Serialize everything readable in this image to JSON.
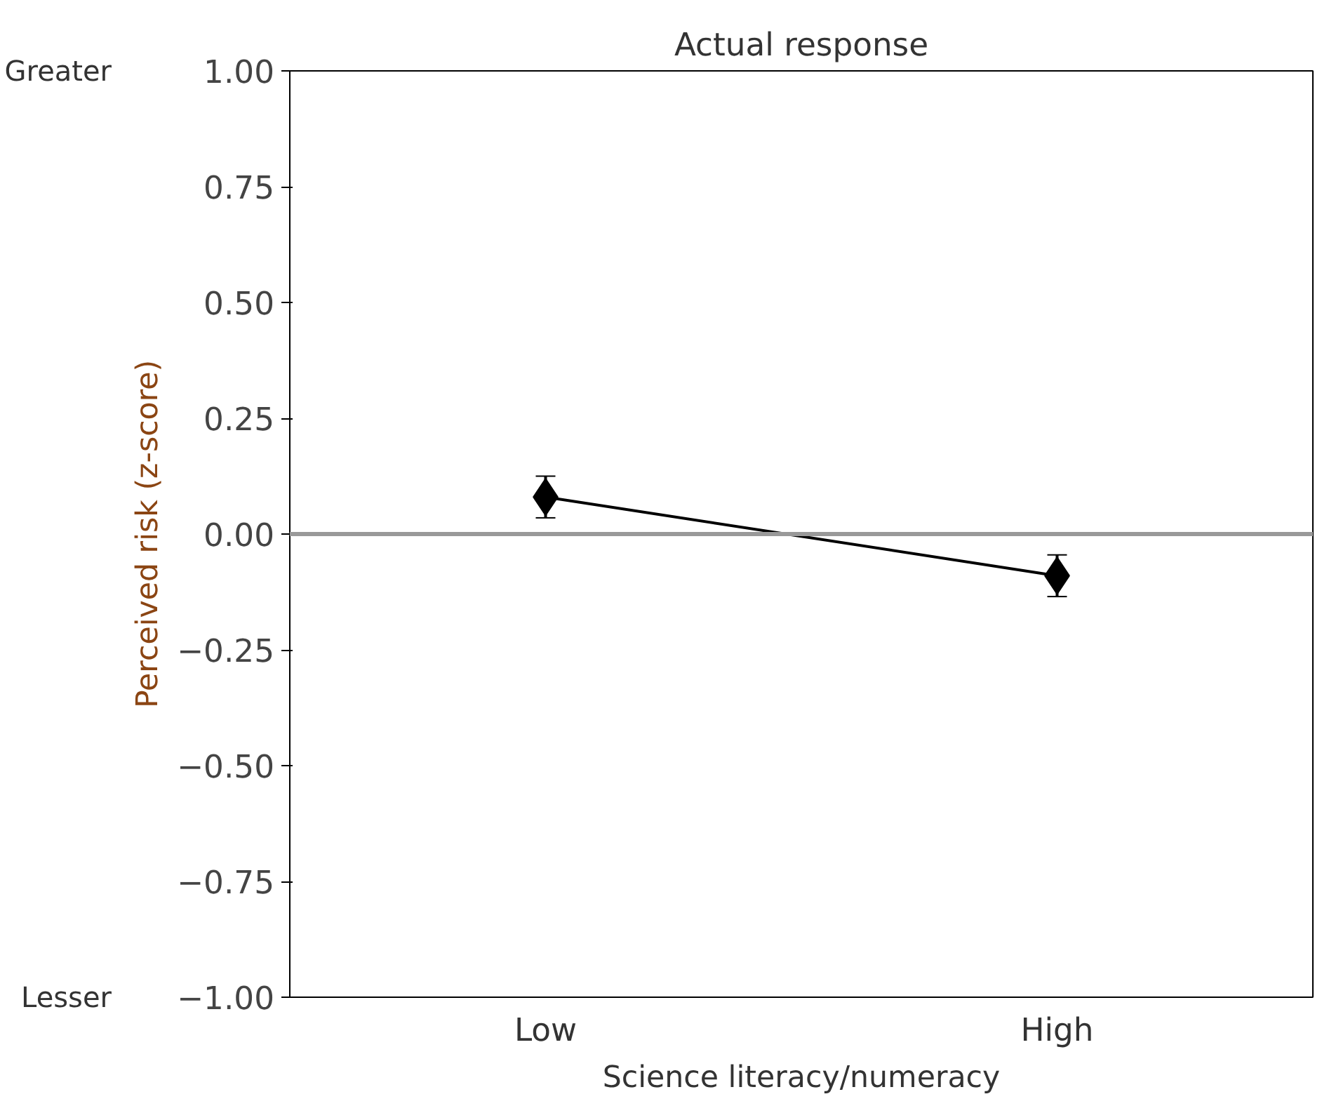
{
  "chart_data": {
    "type": "line",
    "title": "Actual response",
    "xlabel": "Science literacy/numeracy",
    "ylabel": "Perceived risk (z-score)",
    "categories": [
      "Low",
      "High"
    ],
    "series": [
      {
        "color": "#000000",
        "values": [
          0.08,
          -0.09
        ],
        "errors": [
          0.045,
          0.045
        ]
      }
    ],
    "marker": "diamond",
    "line_style": "solid",
    "ylim": [
      -1.0,
      1.0
    ],
    "yticks": [
      {
        "value": 1,
        "label": "1.00"
      },
      {
        "value": 0.75,
        "label": "0.75"
      },
      {
        "value": 0.5,
        "label": "0.50"
      },
      {
        "value": 0.25,
        "label": "0.25"
      },
      {
        "value": 0,
        "label": "0.00"
      },
      {
        "value": -0.25,
        "label": "−0.25"
      },
      {
        "value": -0.5,
        "label": "−0.50"
      },
      {
        "value": -0.75,
        "label": "−0.75"
      },
      {
        "value": -1,
        "label": "−1.00"
      }
    ],
    "ref_lines": [
      {
        "axis": "y",
        "value": 0,
        "color": "#999999"
      }
    ],
    "annotations": [
      "Greater",
      "Lesser"
    ],
    "grid": false
  }
}
